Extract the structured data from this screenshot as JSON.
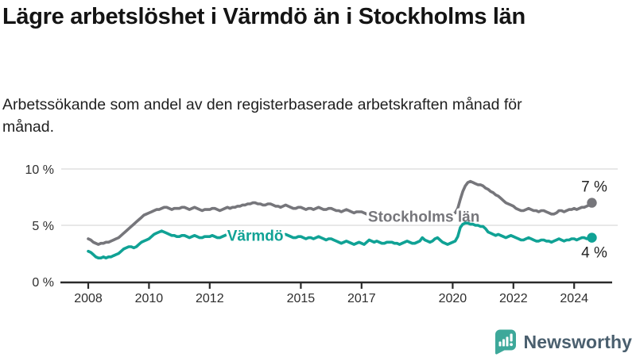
{
  "header": {
    "title": "Lägre arbetslöshet i Värmdö än i Stockholms län",
    "subtitle": "Arbetssökande som andel av den registerbaserade arbetskraften månad för månad."
  },
  "chart_data": {
    "type": "line",
    "title": "Lägre arbetslöshet i Värmdö än i Stockholms län",
    "subtitle": "Arbetssökande som andel av den registerbaserade arbetskraften månad för månad.",
    "xlabel": "",
    "ylabel": "",
    "x_start": {
      "year": 2008,
      "month": 1
    },
    "points_per_year": 12,
    "x_ticks": [
      {
        "year": 2008,
        "label": "2008"
      },
      {
        "year": 2010,
        "label": "2010"
      },
      {
        "year": 2012,
        "label": "2012"
      },
      {
        "year": 2015,
        "label": "2015"
      },
      {
        "year": 2017,
        "label": "2017"
      },
      {
        "year": 2020,
        "label": "2020"
      },
      {
        "year": 2022,
        "label": "2022"
      },
      {
        "year": 2024,
        "label": "2024"
      }
    ],
    "y_ticks": [
      {
        "value": 0,
        "label": "0 %"
      },
      {
        "value": 5,
        "label": "5 %"
      },
      {
        "value": 10,
        "label": "10 %"
      }
    ],
    "ylim": [
      0,
      10.5
    ],
    "grid": true,
    "legend_position": "inline-labels",
    "series": [
      {
        "name": "Stockholms län",
        "color": "#76767b",
        "inline_label": {
          "year": 2019.05,
          "pct": 5.3
        },
        "end_label": {
          "text": "7 %",
          "position": "above"
        },
        "values": [
          3.8,
          3.7,
          3.5,
          3.4,
          3.3,
          3.4,
          3.4,
          3.5,
          3.5,
          3.6,
          3.7,
          3.8,
          3.9,
          4.1,
          4.3,
          4.5,
          4.7,
          4.9,
          5.1,
          5.3,
          5.5,
          5.7,
          5.9,
          6.0,
          6.1,
          6.2,
          6.3,
          6.4,
          6.4,
          6.5,
          6.6,
          6.6,
          6.5,
          6.4,
          6.5,
          6.5,
          6.5,
          6.6,
          6.6,
          6.5,
          6.4,
          6.5,
          6.6,
          6.5,
          6.4,
          6.3,
          6.4,
          6.4,
          6.4,
          6.5,
          6.5,
          6.4,
          6.3,
          6.4,
          6.5,
          6.6,
          6.5,
          6.6,
          6.6,
          6.7,
          6.7,
          6.8,
          6.8,
          6.9,
          6.9,
          7.0,
          7.0,
          6.9,
          6.9,
          6.8,
          6.8,
          6.9,
          6.9,
          6.8,
          6.7,
          6.7,
          6.6,
          6.7,
          6.8,
          6.7,
          6.6,
          6.5,
          6.5,
          6.6,
          6.6,
          6.5,
          6.4,
          6.5,
          6.5,
          6.4,
          6.5,
          6.6,
          6.5,
          6.4,
          6.4,
          6.5,
          6.5,
          6.4,
          6.3,
          6.3,
          6.2,
          6.3,
          6.4,
          6.3,
          6.2,
          6.1,
          6.2,
          6.2,
          6.2,
          6.1,
          6.0,
          6.0,
          5.9,
          6.0,
          6.1,
          6.0,
          5.9,
          5.9,
          6.0,
          6.0,
          6.0,
          5.9,
          5.9,
          5.8,
          5.8,
          5.9,
          6.0,
          5.9,
          5.8,
          5.8,
          5.9,
          5.9,
          5.9,
          5.8,
          5.8,
          5.8,
          5.9,
          6.0,
          6.0,
          5.9,
          5.9,
          5.8,
          5.9,
          6.0,
          6.0,
          6.1,
          6.5,
          7.3,
          8.0,
          8.5,
          8.8,
          8.9,
          8.8,
          8.7,
          8.6,
          8.6,
          8.5,
          8.3,
          8.2,
          8.0,
          7.9,
          7.7,
          7.6,
          7.4,
          7.2,
          7.0,
          6.9,
          6.8,
          6.7,
          6.5,
          6.4,
          6.3,
          6.3,
          6.4,
          6.5,
          6.4,
          6.3,
          6.3,
          6.2,
          6.3,
          6.3,
          6.2,
          6.1,
          6.0,
          6.0,
          6.1,
          6.3,
          6.3,
          6.2,
          6.3,
          6.4,
          6.4,
          6.5,
          6.4,
          6.5,
          6.6,
          6.6,
          6.7,
          6.8,
          7.0
        ]
      },
      {
        "name": "Värmdö",
        "color": "#10a295",
        "inline_label": {
          "year": 2013.5,
          "pct": 3.62
        },
        "end_label": {
          "text": "4 %",
          "position": "below"
        },
        "values": [
          2.7,
          2.6,
          2.4,
          2.2,
          2.1,
          2.1,
          2.2,
          2.1,
          2.2,
          2.2,
          2.3,
          2.4,
          2.5,
          2.7,
          2.9,
          3.0,
          3.1,
          3.1,
          3.0,
          3.1,
          3.3,
          3.5,
          3.6,
          3.7,
          3.8,
          4.0,
          4.2,
          4.3,
          4.4,
          4.5,
          4.4,
          4.3,
          4.2,
          4.1,
          4.1,
          4.0,
          4.0,
          4.1,
          4.1,
          4.0,
          3.9,
          4.0,
          4.1,
          4.0,
          3.9,
          3.9,
          4.0,
          4.0,
          4.0,
          4.1,
          4.0,
          3.9,
          3.9,
          4.0,
          4.1,
          4.2,
          4.1,
          4.0,
          4.1,
          4.1,
          4.1,
          4.2,
          4.2,
          4.1,
          4.1,
          4.2,
          4.3,
          4.2,
          4.1,
          4.1,
          4.0,
          4.1,
          4.1,
          4.2,
          4.1,
          4.0,
          4.0,
          4.1,
          4.2,
          4.1,
          4.0,
          3.9,
          3.9,
          4.0,
          4.0,
          3.9,
          3.8,
          3.9,
          3.9,
          3.8,
          3.9,
          4.0,
          3.9,
          3.8,
          3.7,
          3.8,
          3.8,
          3.7,
          3.6,
          3.5,
          3.4,
          3.5,
          3.6,
          3.5,
          3.4,
          3.3,
          3.4,
          3.5,
          3.4,
          3.3,
          3.5,
          3.7,
          3.6,
          3.5,
          3.6,
          3.5,
          3.4,
          3.4,
          3.5,
          3.5,
          3.5,
          3.4,
          3.4,
          3.3,
          3.4,
          3.5,
          3.6,
          3.5,
          3.4,
          3.4,
          3.5,
          3.6,
          3.9,
          3.7,
          3.6,
          3.5,
          3.6,
          3.8,
          3.9,
          3.7,
          3.5,
          3.4,
          3.3,
          3.4,
          3.5,
          3.6,
          4.0,
          4.8,
          5.1,
          5.2,
          5.2,
          5.1,
          5.1,
          5.0,
          5.0,
          4.9,
          4.9,
          4.7,
          4.4,
          4.3,
          4.2,
          4.1,
          4.2,
          4.1,
          4.0,
          3.9,
          4.0,
          4.1,
          4.0,
          3.9,
          3.8,
          3.7,
          3.7,
          3.8,
          3.9,
          3.8,
          3.7,
          3.6,
          3.6,
          3.7,
          3.7,
          3.6,
          3.6,
          3.5,
          3.6,
          3.7,
          3.8,
          3.7,
          3.6,
          3.7,
          3.7,
          3.8,
          3.8,
          3.7,
          3.8,
          3.9,
          3.9,
          3.8,
          3.9,
          3.9
        ]
      }
    ],
    "colors": {
      "grid": "#e0e0e0",
      "axis": "#2a2a2a",
      "tick_text": "#2e2e2e",
      "end_label_text": "#222222"
    }
  },
  "footer": {
    "brand": "Newsworthy",
    "logo_teal": "#3da89a",
    "logo_text_color": "#4a5f6e"
  }
}
